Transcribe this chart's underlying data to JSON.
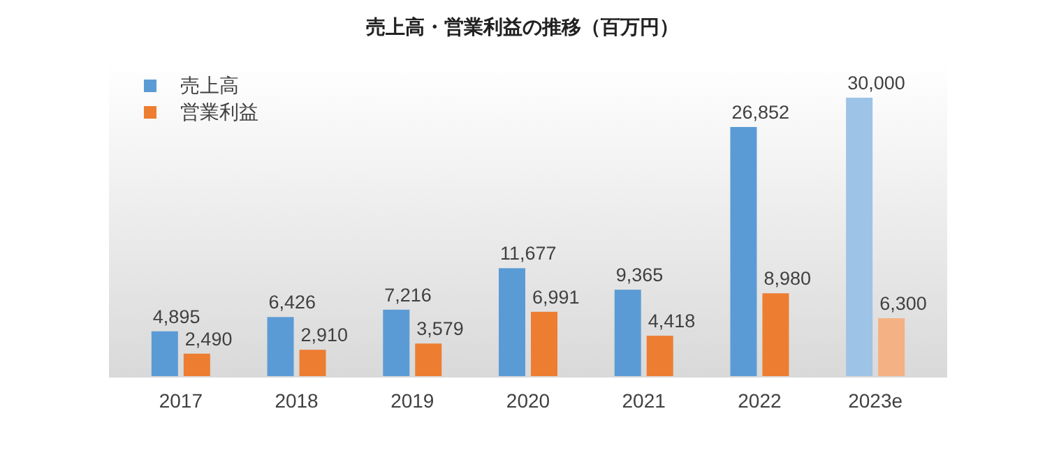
{
  "chart_data": {
    "type": "bar",
    "title": "売上高・営業利益の推移（百万円）",
    "categories": [
      "2017",
      "2018",
      "2019",
      "2020",
      "2021",
      "2022",
      "2023e"
    ],
    "series": [
      {
        "name": "売上高",
        "color": "#5b9bd5",
        "colors": [
          "#5b9bd5",
          "#5b9bd5",
          "#5b9bd5",
          "#5b9bd5",
          "#5b9bd5",
          "#5b9bd5",
          "#9dc3e6"
        ],
        "values": [
          4895,
          6426,
          7216,
          11677,
          9365,
          26852,
          30000
        ],
        "value_labels": [
          "4,895",
          "6,426",
          "7,216",
          "11,677",
          "9,365",
          "26,852",
          "30,000"
        ]
      },
      {
        "name": "営業利益",
        "color": "#ed7d31",
        "colors": [
          "#ed7d31",
          "#ed7d31",
          "#ed7d31",
          "#ed7d31",
          "#ed7d31",
          "#ed7d31",
          "#f4b183"
        ],
        "values": [
          2490,
          2910,
          3579,
          6991,
          4418,
          8980,
          6300
        ],
        "value_labels": [
          "2,490",
          "2,910",
          "3,579",
          "6,991",
          "4,418",
          "8,980",
          "6,300"
        ]
      }
    ],
    "legend": "top left",
    "tick_labels": "x"
  }
}
